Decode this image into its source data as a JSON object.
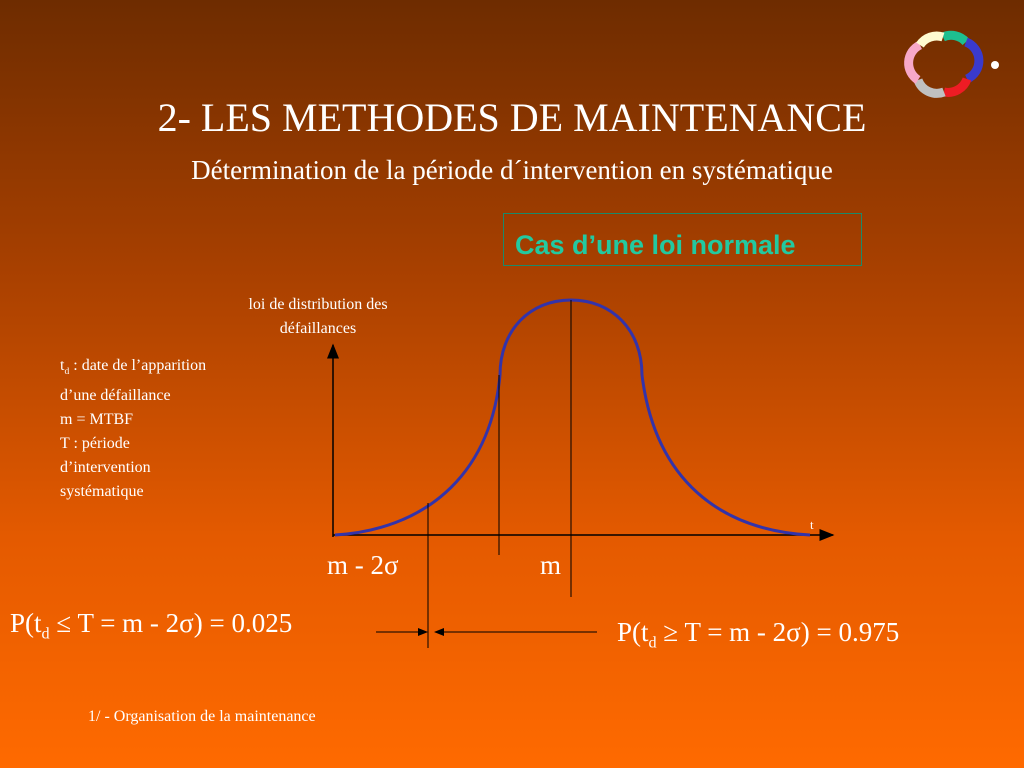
{
  "header": {
    "title": "2- LES METHODES DE MAINTENANCE",
    "subtitle": "Détermination de la période d´intervention en systématique"
  },
  "case_box": "Cas d’une loi normale",
  "diagram": {
    "y_axis_label": "loi de distribution des défaillances",
    "x_axis_label": "t",
    "marker_left": "m - 2σ",
    "marker_right": "m"
  },
  "legend": {
    "td_prefix": "t",
    "td_sub": "d",
    "td_text": " : date de l’apparition d’une défaillance",
    "mtbf": "m = MTBF",
    "period": "T : période d’intervention systématique"
  },
  "formula_left": {
    "prefix": "P(t",
    "sub": "d",
    "rest": " ≤ T = m - 2σ) = 0.025"
  },
  "formula_right": {
    "prefix": "P(t",
    "sub": "d",
    "rest": " ≥ T = m - 2σ) = 0.975"
  },
  "footer": "1/ - Organisation de la maintenance"
}
